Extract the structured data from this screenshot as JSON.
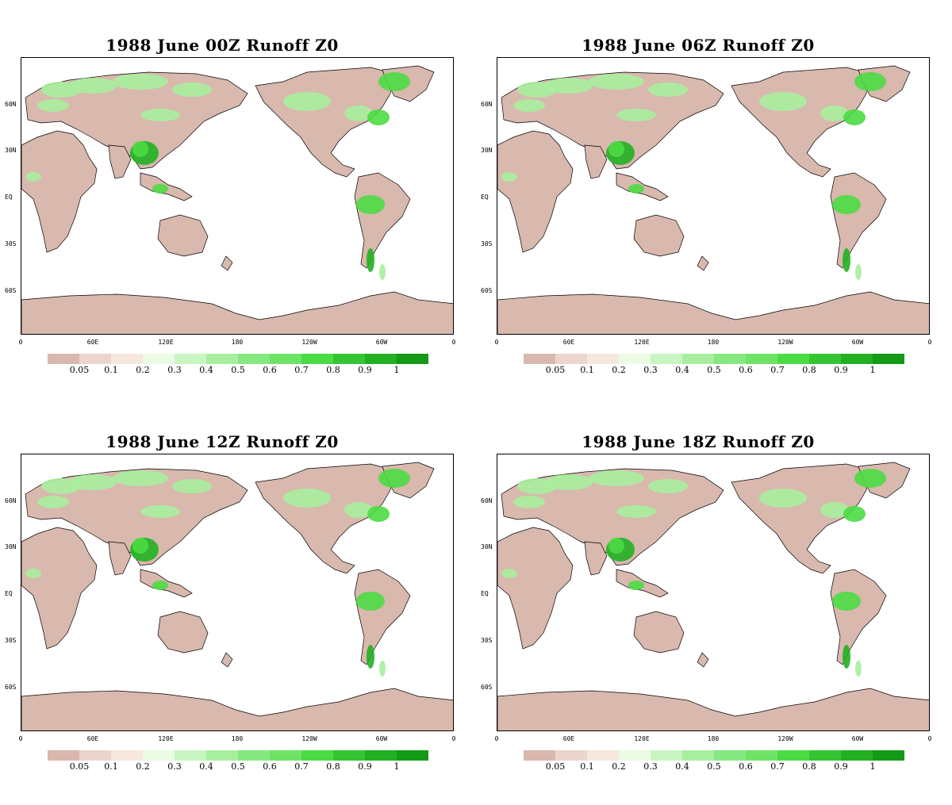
{
  "panels": [
    {
      "title": "1988 June 00Z Runoff Z0"
    },
    {
      "title": "1988  June 06Z Runoff Z0"
    },
    {
      "title": "1988  June 12Z Runoff Z0"
    },
    {
      "title": "1988  June 18Z Runoff Z0"
    }
  ],
  "lat_labels": [
    "60N",
    "30N",
    "EQ",
    "30S",
    "60S"
  ],
  "lon_labels": [
    "0",
    "60E",
    "120E",
    "180",
    "120W",
    "60W",
    "0"
  ],
  "colorbar": {
    "labels": [
      "0.05",
      "0.1",
      "0.2",
      "0.3",
      "0.4",
      "0.5",
      "0.6",
      "0.7",
      "0.8",
      "0.9",
      "1"
    ],
    "colors": [
      "#d9b8ae",
      "#ecd5cc",
      "#f6e8dc",
      "#ecfbe4",
      "#c9f5c2",
      "#a8ee9f",
      "#86e880",
      "#6fe366",
      "#4bdc44",
      "#35c532",
      "#22b022",
      "#139a16"
    ]
  },
  "map_colors": {
    "land_dry": "#d9b8ae",
    "land_light": "#f1e3d7",
    "green_light": "#a8ee9f",
    "green_mid": "#4bdc44",
    "green_dark": "#22b022",
    "ocean": "#ffffff",
    "coast": "#000000"
  }
}
